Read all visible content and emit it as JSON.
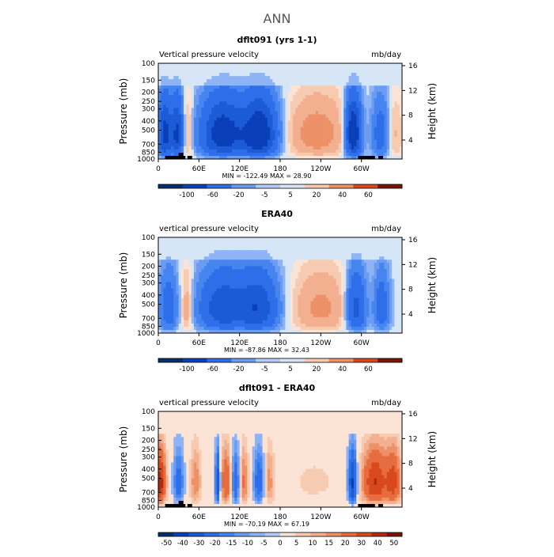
{
  "figure": {
    "title": "ANN"
  },
  "colors": {
    "blues": [
      "#08306b",
      "#0a3fb8",
      "#1c5bd6",
      "#2e6ee8",
      "#4684f0",
      "#6b9cf2",
      "#8fb4f5",
      "#b3cdf8"
    ],
    "neutral": "#d6e6f7",
    "reds": [
      "#fbe3d6",
      "#f7cbb1",
      "#f3b090",
      "#ed9168",
      "#e66d3f",
      "#d8491c",
      "#b02a0e",
      "#7a1607"
    ]
  },
  "chart_data": [
    {
      "type": "heatmap",
      "title": "dflt091 (yrs 1-1)",
      "left_label": "Vertical pressure velocity",
      "right_label": "mb/day",
      "ylabel": "Pressure (mb)",
      "ylabel_right": "Height (km)",
      "yticks": [
        "100",
        "150",
        "200",
        "250",
        "300",
        "400",
        "500",
        "700",
        "850",
        "1000"
      ],
      "yticks_right": [
        "16",
        "12",
        "8",
        "4"
      ],
      "xticks": [
        "0",
        "60E",
        "120E",
        "180",
        "120W",
        "60W"
      ],
      "stats": "MIN = -122.49   MAX =  28.90",
      "colorbar": [
        "-100",
        "-60",
        "-20",
        "-5",
        "5",
        "20",
        "40",
        "60"
      ],
      "mode": "model"
    },
    {
      "type": "heatmap",
      "title": "ERA40",
      "left_label": "vertical pressure velocity",
      "right_label": "mb/day",
      "ylabel": "Pressure (mb)",
      "ylabel_right": "Height (km)",
      "yticks": [
        "100",
        "150",
        "200",
        "250",
        "300",
        "400",
        "500",
        "700",
        "850",
        "1000"
      ],
      "yticks_right": [
        "16",
        "12",
        "8",
        "4"
      ],
      "xticks": [
        "0",
        "60E",
        "120E",
        "180",
        "120W",
        "60W"
      ],
      "stats": "MIN = -87.86   MAX =  32.43",
      "colorbar": [
        "-100",
        "-60",
        "-20",
        "-5",
        "5",
        "20",
        "40",
        "60"
      ],
      "mode": "obs"
    },
    {
      "type": "heatmap",
      "title": "dflt091 - ERA40",
      "left_label": "vertical pressure velocity",
      "right_label": "mb/day",
      "ylabel": "Pressure (mb)",
      "ylabel_right": "Height (km)",
      "yticks": [
        "100",
        "150",
        "200",
        "250",
        "300",
        "400",
        "500",
        "700",
        "850",
        "1000"
      ],
      "yticks_right": [
        "16",
        "12",
        "8",
        "4"
      ],
      "xticks": [
        "0",
        "60E",
        "120E",
        "180",
        "120W",
        "60W"
      ],
      "stats": "MIN = -70.19   MAX =  67.19",
      "colorbar": [
        "-50",
        "-40",
        "-30",
        "-20",
        "-15",
        "-10",
        "-5",
        "0",
        "5",
        "10",
        "15",
        "20",
        "30",
        "40",
        "50"
      ],
      "mode": "diff"
    }
  ]
}
